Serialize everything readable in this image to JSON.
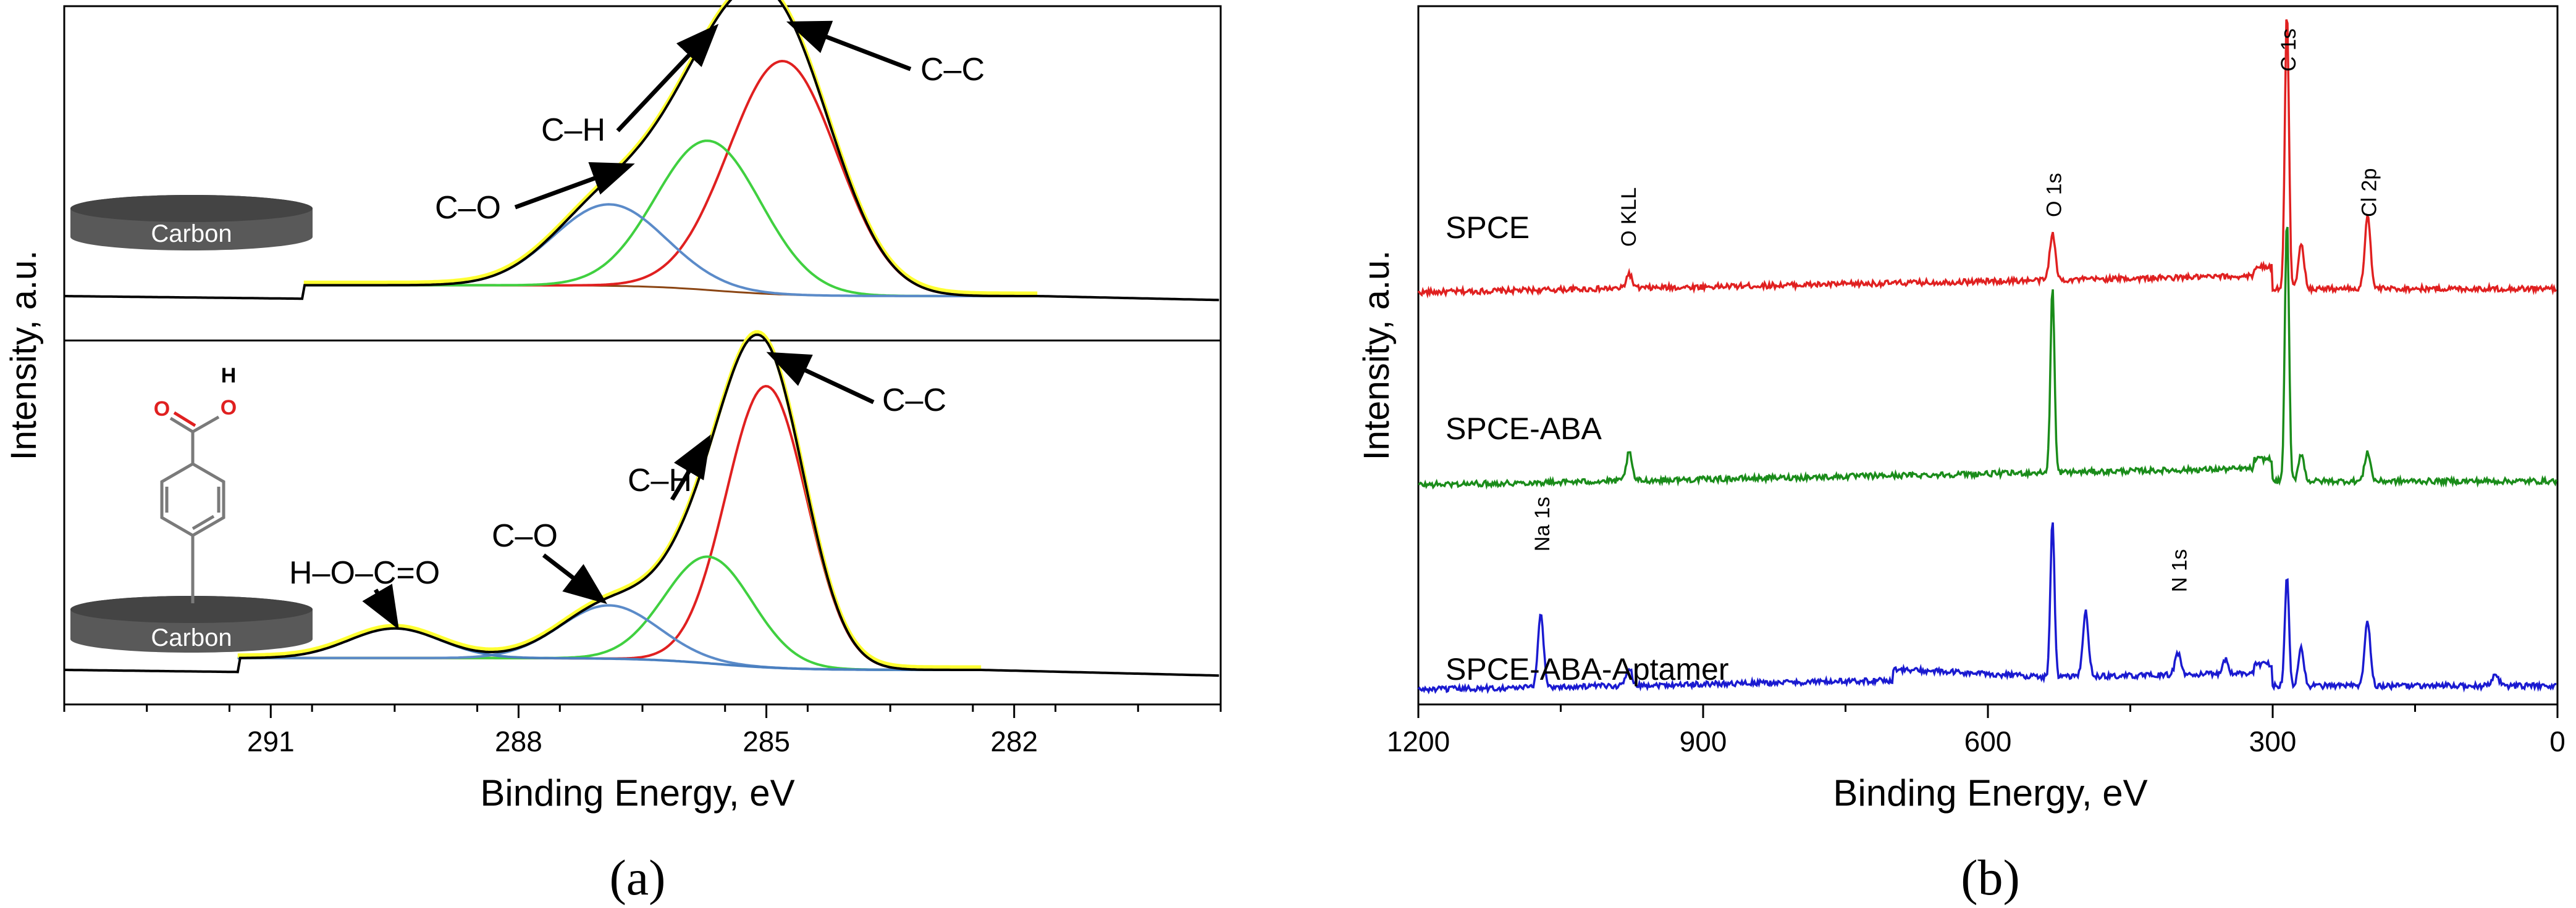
{
  "figure": {
    "panel_a_caption": "(a)",
    "panel_b_caption": "(b)"
  },
  "chart_data": [
    {
      "id": "a",
      "type": "line",
      "title": "",
      "xlabel": "Binding Energy, eV",
      "ylabel": "Intensity, a.u.",
      "xlim": [
        293.5,
        279.5
      ],
      "xticks": [
        291,
        288,
        285,
        282
      ],
      "x_reversed": true,
      "colors": {
        "envelope": "#ffff33",
        "fit": "#000000",
        "C-C": "#e02020",
        "C-H": "#40d040",
        "C-O": "#5b8bc9",
        "COOH": "#4a7fc0",
        "baseline": "#8b4513"
      },
      "subpanels": [
        {
          "name": "top",
          "label_box": "Carbon",
          "components": [
            {
              "name": "C-C",
              "center": 284.8,
              "fwhm": 1.55,
              "height": 0.86
            },
            {
              "name": "C-H",
              "center": 285.7,
              "fwhm": 1.5,
              "height": 0.55
            },
            {
              "name": "C-O",
              "center": 286.9,
              "fwhm": 1.6,
              "height": 0.3
            }
          ],
          "annotations": [
            {
              "text": "C–C",
              "target": 284.8
            },
            {
              "text": "C–H",
              "target": 285.6
            },
            {
              "text": "C–O",
              "target": 286.7
            }
          ]
        },
        {
          "name": "bottom",
          "label_box": "Carbon",
          "molecule": {
            "O_label": "O",
            "H_label": "H"
          },
          "components": [
            {
              "name": "C-C",
              "center": 285.0,
              "fwhm": 1.15,
              "height": 0.95
            },
            {
              "name": "C-H",
              "center": 285.7,
              "fwhm": 1.25,
              "height": 0.36
            },
            {
              "name": "C-O",
              "center": 286.9,
              "fwhm": 1.4,
              "height": 0.18
            },
            {
              "name": "COOH",
              "center": 289.5,
              "fwhm": 1.3,
              "height": 0.1
            }
          ],
          "annotations": [
            {
              "text": "C–C",
              "target": 284.9
            },
            {
              "text": "C–H",
              "target": 285.7
            },
            {
              "text": "C–O",
              "target": 287.0
            },
            {
              "text": "H–O–C=O",
              "target": 289.5
            }
          ]
        }
      ]
    },
    {
      "id": "b",
      "type": "line",
      "title": "",
      "xlabel": "Binding Energy, eV",
      "ylabel": "Intensity, a.u.",
      "xlim": [
        1200,
        0
      ],
      "xticks": [
        1200,
        900,
        600,
        300,
        0
      ],
      "x_reversed": true,
      "series": [
        {
          "name": "SPCE",
          "color": "#e02020",
          "peaks": [
            {
              "x": 978,
              "h": 0.08
            },
            {
              "x": 532,
              "h": 0.25
            },
            {
              "x": 285,
              "h": 1.5
            },
            {
              "x": 270,
              "h": 0.25
            },
            {
              "x": 200,
              "h": 0.4
            }
          ],
          "peak_labels": [
            {
              "text": "O KLL",
              "x": 980
            },
            {
              "text": "O 1s",
              "x": 532
            },
            {
              "text": "C 1s",
              "x": 285
            },
            {
              "text": "Cl 2p",
              "x": 200
            }
          ]
        },
        {
          "name": "SPCE-ABA",
          "color": "#1a8c1a",
          "peaks": [
            {
              "x": 978,
              "h": 0.15
            },
            {
              "x": 532,
              "h": 1.0
            },
            {
              "x": 285,
              "h": 1.42
            },
            {
              "x": 270,
              "h": 0.15
            },
            {
              "x": 200,
              "h": 0.16
            }
          ],
          "peak_labels": []
        },
        {
          "name": "SPCE-ABA-Aptamer",
          "color": "#1a1ad0",
          "peaks": [
            {
              "x": 1071,
              "h": 0.4
            },
            {
              "x": 978,
              "h": 0.1
            },
            {
              "x": 532,
              "h": 0.85
            },
            {
              "x": 497,
              "h": 0.35
            },
            {
              "x": 400,
              "h": 0.12
            },
            {
              "x": 350,
              "h": 0.08
            },
            {
              "x": 285,
              "h": 0.6
            },
            {
              "x": 270,
              "h": 0.2
            },
            {
              "x": 200,
              "h": 0.35
            },
            {
              "x": 65,
              "h": 0.07
            }
          ],
          "peak_labels": [
            {
              "text": "Na 1s",
              "x": 1071
            },
            {
              "text": "N 1s",
              "x": 400
            }
          ]
        }
      ]
    }
  ]
}
